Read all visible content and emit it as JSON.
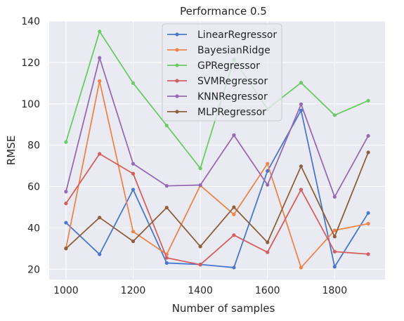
{
  "chart_data": {
    "type": "line",
    "title": "Performance 0.5",
    "xlabel": "Number of samples",
    "ylabel": "RMSE",
    "x": [
      1000,
      1100,
      1200,
      1300,
      1400,
      1500,
      1600,
      1700,
      1800,
      1900
    ],
    "xticks": [
      1000,
      1200,
      1400,
      1600,
      1800
    ],
    "yticks": [
      20,
      40,
      60,
      80,
      100,
      120,
      140
    ],
    "xlim": [
      950,
      1950
    ],
    "ylim": [
      15,
      140
    ],
    "grid": true,
    "legend_position": "top-center",
    "series": [
      {
        "name": "LinearRegressor",
        "color": "#4878d0",
        "values": [
          42.5,
          27.2,
          58.5,
          23.0,
          22.3,
          20.8,
          67.5,
          96.8,
          21.2,
          47.2
        ]
      },
      {
        "name": "BayesianRidge",
        "color": "#ee854a",
        "values": [
          30.2,
          111.0,
          38.2,
          27.2,
          60.5,
          46.5,
          71.0,
          20.8,
          38.8,
          42.0
        ]
      },
      {
        "name": "GPRegressor",
        "color": "#6acc64",
        "values": [
          81.5,
          135.0,
          110.0,
          89.5,
          68.8,
          121.5,
          97.5,
          110.2,
          94.5,
          101.5
        ]
      },
      {
        "name": "SVMRegressor",
        "color": "#d65f5f",
        "values": [
          51.8,
          75.8,
          66.2,
          25.5,
          22.2,
          36.5,
          28.2,
          58.5,
          28.5,
          27.3
        ]
      },
      {
        "name": "KNNRegressor",
        "color": "#956cb4",
        "values": [
          57.5,
          122.2,
          71.0,
          60.3,
          60.7,
          84.8,
          60.8,
          99.8,
          55.0,
          84.5
        ]
      },
      {
        "name": "MLPRegressor",
        "color": "#8c613c",
        "values": [
          30.0,
          45.0,
          33.5,
          49.8,
          31.0,
          50.0,
          33.0,
          69.8,
          35.8,
          76.5
        ]
      }
    ]
  }
}
